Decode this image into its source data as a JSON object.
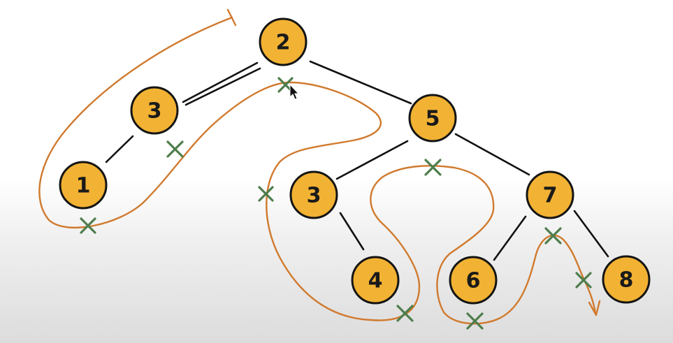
{
  "tree": {
    "nodes": [
      {
        "id": "n2-root",
        "label": "2"
      },
      {
        "id": "n3-left",
        "label": "3"
      },
      {
        "id": "n1",
        "label": "1"
      },
      {
        "id": "n5",
        "label": "5"
      },
      {
        "id": "n3-inner",
        "label": "3"
      },
      {
        "id": "n4",
        "label": "4"
      },
      {
        "id": "n7",
        "label": "7"
      },
      {
        "id": "n6",
        "label": "6"
      },
      {
        "id": "n8",
        "label": "8"
      }
    ],
    "edges": [
      {
        "from": "n2-root",
        "to": "n3-left"
      },
      {
        "from": "n3-left",
        "to": "n1"
      },
      {
        "from": "n2-root",
        "to": "n5"
      },
      {
        "from": "n5",
        "to": "n3-inner"
      },
      {
        "from": "n3-inner",
        "to": "n4"
      },
      {
        "from": "n5",
        "to": "n7"
      },
      {
        "from": "n7",
        "to": "n6"
      },
      {
        "from": "n7",
        "to": "n8"
      }
    ]
  },
  "traversal": {
    "color": "#d07a2e",
    "marker_color": "#4e7d4c",
    "marker_symbol": "x",
    "marker_count": 10
  },
  "colors": {
    "node_fill": "#f2b233",
    "node_stroke": "#141414",
    "edge": "#111111"
  }
}
